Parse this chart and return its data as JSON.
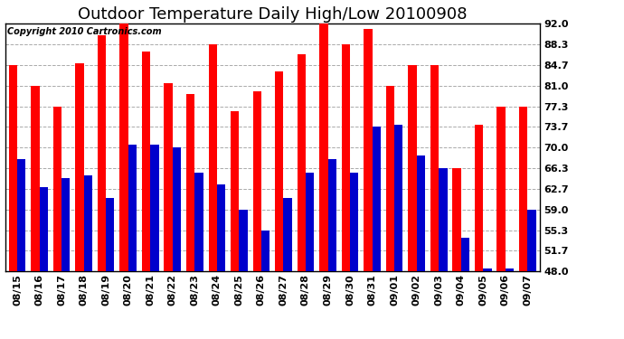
{
  "title": "Outdoor Temperature Daily High/Low 20100908",
  "copyright": "Copyright 2010 Cartronics.com",
  "dates": [
    "08/15",
    "08/16",
    "08/17",
    "08/18",
    "08/19",
    "08/20",
    "08/21",
    "08/22",
    "08/23",
    "08/24",
    "08/25",
    "08/26",
    "08/27",
    "08/28",
    "08/29",
    "08/30",
    "08/31",
    "09/01",
    "09/02",
    "09/03",
    "09/04",
    "09/05",
    "09/06",
    "09/07"
  ],
  "highs": [
    84.7,
    81.0,
    77.3,
    85.0,
    90.0,
    92.0,
    87.0,
    81.5,
    79.5,
    88.3,
    76.5,
    80.0,
    83.5,
    86.5,
    92.0,
    88.3,
    91.0,
    81.0,
    84.7,
    84.7,
    66.3,
    74.0,
    77.3,
    77.3
  ],
  "lows": [
    68.0,
    63.0,
    64.5,
    65.0,
    61.0,
    70.5,
    70.5,
    70.0,
    65.5,
    63.5,
    59.0,
    55.3,
    61.0,
    65.5,
    68.0,
    65.5,
    73.7,
    74.0,
    68.5,
    66.3,
    54.0,
    48.5,
    48.5,
    59.0
  ],
  "high_color": "#FF0000",
  "low_color": "#0000CC",
  "bg_color": "#FFFFFF",
  "plot_bg_color": "#FFFFFF",
  "grid_color": "#AAAAAA",
  "ymin": 48.0,
  "ymax": 92.0,
  "yticks": [
    48.0,
    51.7,
    55.3,
    59.0,
    62.7,
    66.3,
    70.0,
    73.7,
    77.3,
    81.0,
    84.7,
    88.3,
    92.0
  ],
  "title_fontsize": 13,
  "tick_fontsize": 8,
  "copyright_fontsize": 7,
  "bar_width": 0.38
}
